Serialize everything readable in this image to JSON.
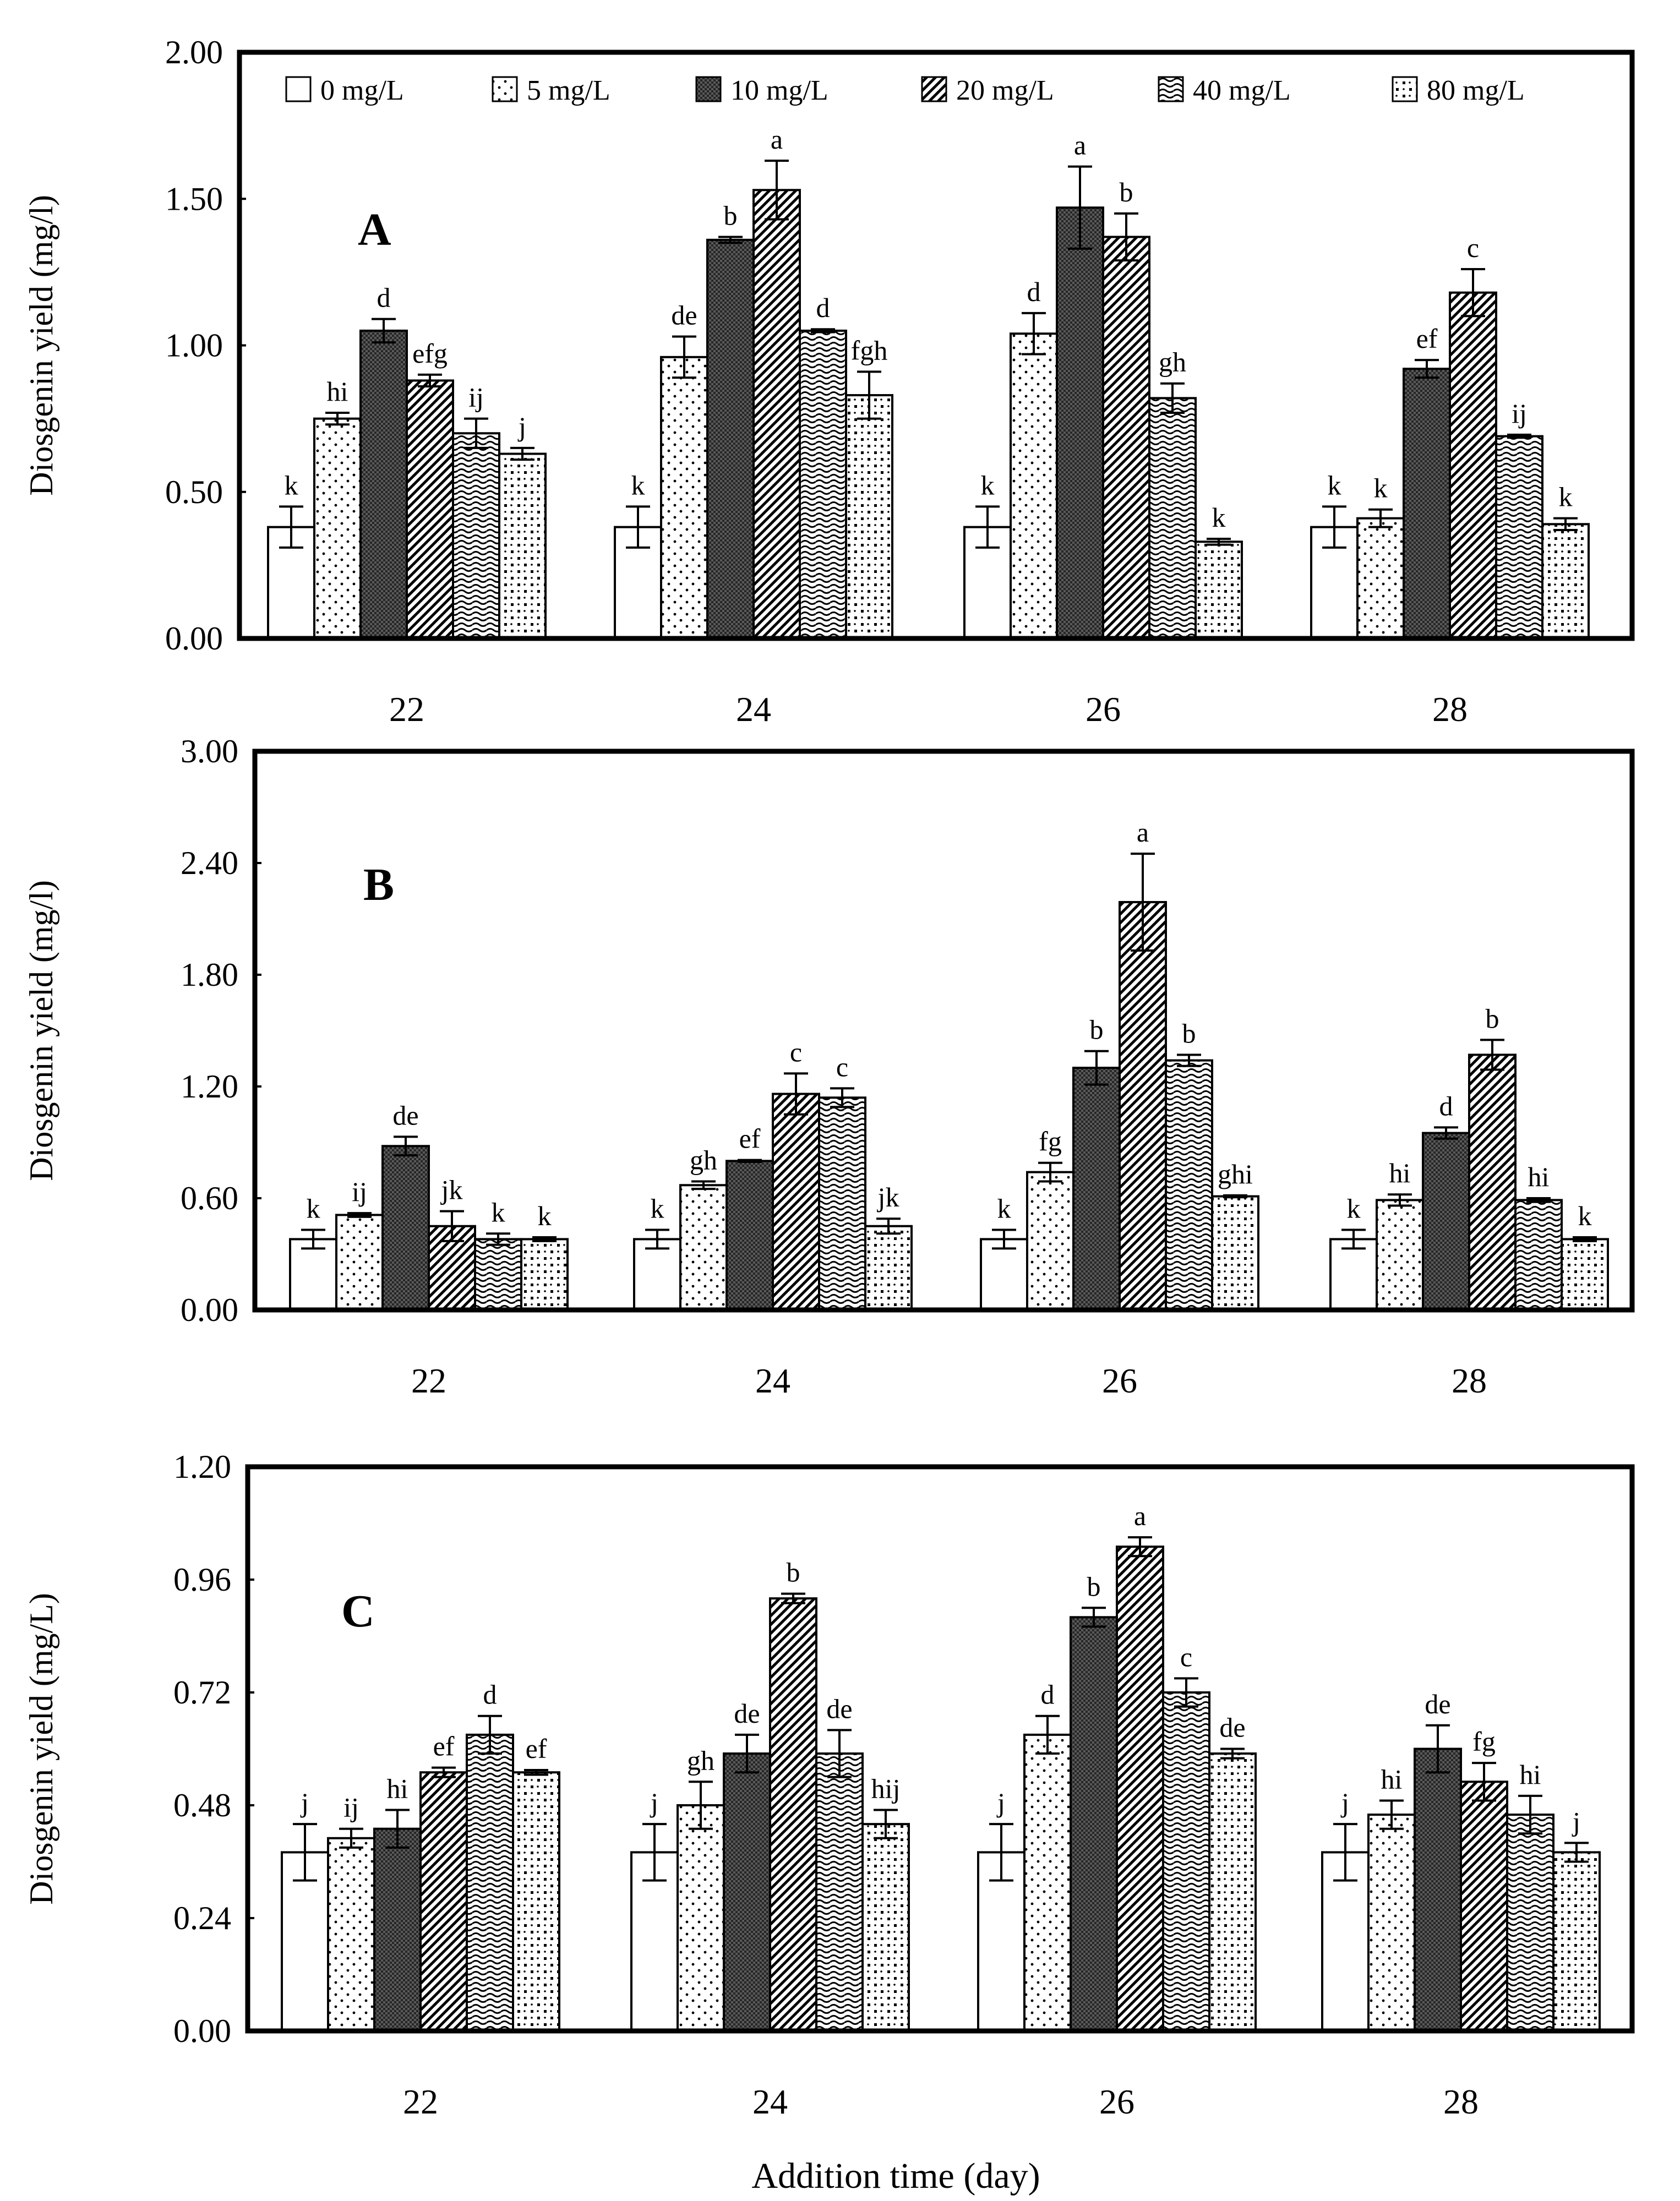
{
  "chart_data": [
    {
      "type": "bar",
      "panel_label": "A",
      "ylabel": "Diosgenin yield (mg/l)",
      "xlabel": "",
      "ylim": [
        0,
        2.0
      ],
      "yticks": [
        "0.00",
        "0.50",
        "1.00",
        "1.50",
        "2.00"
      ],
      "categories": [
        "22",
        "24",
        "26",
        "28"
      ],
      "legend": {
        "placement": "top",
        "entries": [
          "0 mg/L",
          "5 mg/L",
          "10 mg/L",
          "20 mg/L",
          "40 mg/L",
          "80 mg/L"
        ]
      },
      "series": [
        {
          "name": "0 mg/L",
          "values": [
            0.38,
            0.38,
            0.38,
            0.38
          ],
          "errors": [
            0.07,
            0.07,
            0.07,
            0.07
          ],
          "labels": [
            "k",
            "k",
            "k",
            "k"
          ]
        },
        {
          "name": "5 mg/L",
          "values": [
            0.75,
            0.96,
            1.04,
            0.41
          ],
          "errors": [
            0.02,
            0.07,
            0.07,
            0.03
          ],
          "labels": [
            "hi",
            "de",
            "d",
            "k"
          ]
        },
        {
          "name": "10 mg/L",
          "values": [
            1.05,
            1.36,
            1.47,
            0.92
          ],
          "errors": [
            0.04,
            0.01,
            0.14,
            0.03
          ],
          "labels": [
            "d",
            "b",
            "a",
            "ef"
          ]
        },
        {
          "name": "20 mg/L",
          "values": [
            0.88,
            1.53,
            1.37,
            1.18
          ],
          "errors": [
            0.02,
            0.1,
            0.08,
            0.08
          ],
          "labels": [
            "efg",
            "a",
            "b",
            "c"
          ]
        },
        {
          "name": "40 mg/L",
          "values": [
            0.7,
            1.05,
            0.82,
            0.69
          ],
          "errors": [
            0.05,
            0.005,
            0.05,
            0.005
          ],
          "labels": [
            "ij",
            "d",
            "gh",
            "ij"
          ]
        },
        {
          "name": "80 mg/L",
          "values": [
            0.63,
            0.83,
            0.33,
            0.39
          ],
          "errors": [
            0.02,
            0.08,
            0.01,
            0.02
          ],
          "labels": [
            "j",
            "fgh",
            "k",
            "k"
          ]
        }
      ]
    },
    {
      "type": "bar",
      "panel_label": "B",
      "ylabel": "Diosgenin yield (mg/l)",
      "xlabel": "",
      "ylim": [
        0,
        3.0
      ],
      "yticks": [
        "0.00",
        "0.60",
        "1.20",
        "1.80",
        "2.40",
        "3.00"
      ],
      "categories": [
        "22",
        "24",
        "26",
        "28"
      ],
      "series": [
        {
          "name": "0 mg/L",
          "values": [
            0.38,
            0.38,
            0.38,
            0.38
          ],
          "errors": [
            0.05,
            0.05,
            0.05,
            0.05
          ],
          "labels": [
            "k",
            "k",
            "k",
            "k"
          ]
        },
        {
          "name": "5 mg/L",
          "values": [
            0.51,
            0.67,
            0.74,
            0.59
          ],
          "errors": [
            0.01,
            0.02,
            0.05,
            0.03
          ],
          "labels": [
            "ij",
            "gh",
            "fg",
            "hi"
          ]
        },
        {
          "name": "10 mg/L",
          "values": [
            0.88,
            0.8,
            1.3,
            0.95
          ],
          "errors": [
            0.05,
            0.005,
            0.09,
            0.03
          ],
          "labels": [
            "de",
            "ef",
            "b",
            "d"
          ]
        },
        {
          "name": "20 mg/L",
          "values": [
            0.45,
            1.16,
            2.19,
            1.37
          ],
          "errors": [
            0.08,
            0.11,
            0.26,
            0.08
          ],
          "labels": [
            "jk",
            "c",
            "a",
            "b"
          ]
        },
        {
          "name": "40 mg/L",
          "values": [
            0.38,
            1.14,
            1.34,
            0.59
          ],
          "errors": [
            0.03,
            0.05,
            0.03,
            0.01
          ],
          "labels": [
            "k",
            "c",
            "b",
            "hi"
          ]
        },
        {
          "name": "80 mg/L",
          "values": [
            0.38,
            0.45,
            0.61,
            0.38
          ],
          "errors": [
            0.01,
            0.04,
            0.005,
            0.01
          ],
          "labels": [
            "k",
            "jk",
            "ghi",
            "k"
          ]
        }
      ]
    },
    {
      "type": "bar",
      "panel_label": "C",
      "ylabel": "Diosgenin yield (mg/L)",
      "xlabel": "Addition time (day)",
      "ylim": [
        0,
        1.2
      ],
      "yticks": [
        "0.00",
        "0.24",
        "0.48",
        "0.72",
        "0.96",
        "1.20"
      ],
      "categories": [
        "22",
        "24",
        "26",
        "28"
      ],
      "series": [
        {
          "name": "0 mg/L",
          "values": [
            0.38,
            0.38,
            0.38,
            0.38
          ],
          "errors": [
            0.06,
            0.06,
            0.06,
            0.06
          ],
          "labels": [
            "j",
            "j",
            "j",
            "j"
          ]
        },
        {
          "name": "5 mg/L",
          "values": [
            0.41,
            0.48,
            0.63,
            0.46
          ],
          "errors": [
            0.02,
            0.05,
            0.04,
            0.03
          ],
          "labels": [
            "ij",
            "gh",
            "d",
            "hi"
          ]
        },
        {
          "name": "10 mg/L",
          "values": [
            0.43,
            0.59,
            0.88,
            0.6
          ],
          "errors": [
            0.04,
            0.04,
            0.02,
            0.05
          ],
          "labels": [
            "hi",
            "de",
            "b",
            "de"
          ]
        },
        {
          "name": "20 mg/L",
          "values": [
            0.55,
            0.92,
            1.03,
            0.53
          ],
          "errors": [
            0.01,
            0.01,
            0.02,
            0.04
          ],
          "labels": [
            "ef",
            "b",
            "a",
            "fg"
          ]
        },
        {
          "name": "40 mg/L",
          "values": [
            0.63,
            0.59,
            0.72,
            0.46
          ],
          "errors": [
            0.04,
            0.05,
            0.03,
            0.04
          ],
          "labels": [
            "d",
            "de",
            "c",
            "hi"
          ]
        },
        {
          "name": "80 mg/L",
          "values": [
            0.55,
            0.44,
            0.59,
            0.38
          ],
          "errors": [
            0.005,
            0.03,
            0.01,
            0.02
          ],
          "labels": [
            "ef",
            "hij",
            "de",
            "j"
          ]
        }
      ]
    }
  ]
}
